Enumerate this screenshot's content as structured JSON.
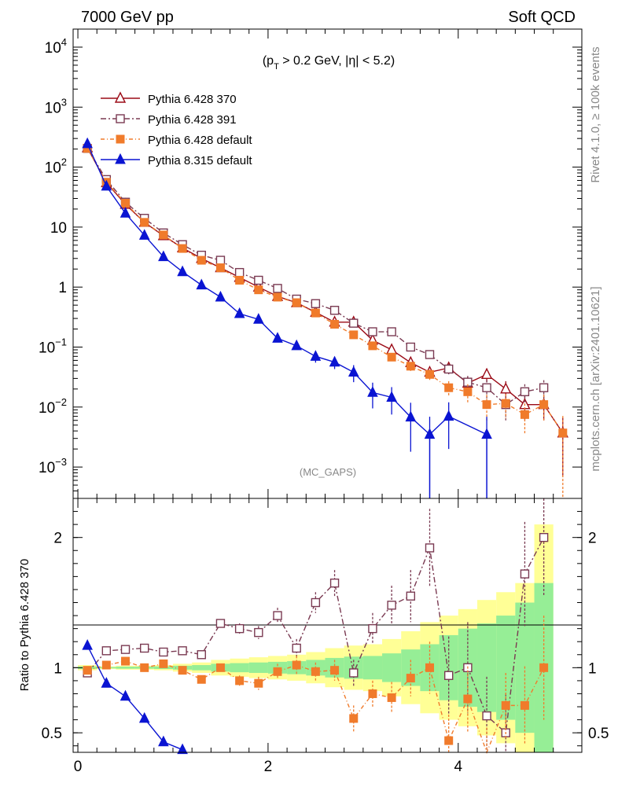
{
  "header": {
    "left_title": "7000 GeV pp",
    "right_title": "Soft QCD"
  },
  "side": {
    "rivet": "Rivet 4.1.0, ≥ 100k events",
    "mcplots": "mcplots.cern.ch [arXiv:2401.10621]"
  },
  "colors": {
    "p370": "#9b0a16",
    "p391": "#7a3a52",
    "p6def": "#f07b2b",
    "p8def": "#0a14d2",
    "band_yellow": "#ffff96",
    "band_green": "#96ee96"
  },
  "chart_data": [
    {
      "type": "line",
      "panel": "main",
      "title_cut": {
        "pre": "(p",
        "sub": "T",
        "post": " > 0.2 GeV, |η| < 5.2)"
      },
      "watermark": "(MC_GAPS)",
      "yscale": "log",
      "xlim": [
        -0.05,
        5.3
      ],
      "ylim": [
        0.0003,
        20000
      ],
      "yticks": [
        {
          "v": 0.001,
          "b": "10",
          "e": "−3"
        },
        {
          "v": 0.01,
          "b": "10",
          "e": "−2"
        },
        {
          "v": 0.1,
          "b": "10",
          "e": "−1"
        },
        {
          "v": 1,
          "b": "1",
          "e": ""
        },
        {
          "v": 10,
          "b": "10",
          "e": ""
        },
        {
          "v": 100,
          "b": "10",
          "e": "2"
        },
        {
          "v": 1000,
          "b": "10",
          "e": "3"
        },
        {
          "v": 10000,
          "b": "10",
          "e": "4"
        }
      ],
      "legend_position": "top-left",
      "series": [
        {
          "key": "p370",
          "name": "Pythia 6.428 370",
          "marker": "triangle-open",
          "dash": "",
          "x": [
            0.1,
            0.3,
            0.5,
            0.7,
            0.9,
            1.1,
            1.3,
            1.5,
            1.7,
            1.9,
            2.1,
            2.3,
            2.5,
            2.7,
            2.9,
            3.1,
            3.3,
            3.5,
            3.7,
            3.9,
            4.1,
            4.3,
            4.5,
            4.7,
            4.9,
            5.1
          ],
          "y": [
            210,
            55,
            24,
            12,
            7.2,
            4.5,
            3.0,
            2.1,
            1.45,
            1.0,
            0.7,
            0.55,
            0.38,
            0.26,
            0.26,
            0.13,
            0.09,
            0.055,
            0.038,
            0.045,
            0.025,
            0.035,
            0.02,
            0.011,
            0.011,
            0.0037
          ],
          "err": [
            5,
            1.5,
            0.6,
            0.3,
            0.2,
            0.1,
            0.08,
            0.06,
            0.04,
            0.03,
            0.03,
            0.03,
            0.02,
            0.02,
            0.02,
            0.015,
            0.012,
            0.009,
            0.008,
            0.009,
            0.007,
            0.009,
            0.007,
            0.005,
            0.005,
            0.003
          ]
        },
        {
          "key": "p391",
          "name": "Pythia 6.428 391",
          "marker": "square-open",
          "dash": "7,3,2,3",
          "x": [
            0.1,
            0.3,
            0.5,
            0.7,
            0.9,
            1.1,
            1.3,
            1.5,
            1.7,
            1.9,
            2.1,
            2.3,
            2.5,
            2.7,
            2.9,
            3.1,
            3.3,
            3.5,
            3.7,
            3.9,
            4.1,
            4.3,
            4.5,
            4.7,
            4.9
          ],
          "y": [
            205,
            62,
            26,
            14,
            8.0,
            5.1,
            3.4,
            2.8,
            1.75,
            1.3,
            0.95,
            0.63,
            0.53,
            0.41,
            0.25,
            0.18,
            0.18,
            0.1,
            0.075,
            0.043,
            0.026,
            0.021,
            0.011,
            0.018,
            0.021
          ],
          "err": [
            5,
            1.5,
            0.6,
            0.3,
            0.2,
            0.1,
            0.08,
            0.07,
            0.05,
            0.04,
            0.04,
            0.03,
            0.03,
            0.03,
            0.02,
            0.02,
            0.02,
            0.012,
            0.01,
            0.009,
            0.007,
            0.007,
            0.005,
            0.006,
            0.007
          ]
        },
        {
          "key": "p6def",
          "name": "Pythia 6.428 default",
          "marker": "square-filled",
          "dash": "5,3,1,3",
          "x": [
            0.1,
            0.3,
            0.5,
            0.7,
            0.9,
            1.1,
            1.3,
            1.5,
            1.7,
            1.9,
            2.1,
            2.3,
            2.5,
            2.7,
            2.9,
            3.1,
            3.3,
            3.5,
            3.7,
            3.9,
            4.1,
            4.3,
            4.5,
            4.7,
            4.9,
            5.1
          ],
          "y": [
            205,
            56,
            25,
            12,
            7.4,
            4.4,
            2.8,
            2.1,
            1.3,
            0.9,
            0.68,
            0.55,
            0.37,
            0.24,
            0.16,
            0.105,
            0.068,
            0.048,
            0.035,
            0.021,
            0.018,
            0.011,
            0.0115,
            0.0075,
            0.011,
            0.0037
          ],
          "err": [
            5,
            1.5,
            0.6,
            0.3,
            0.2,
            0.1,
            0.08,
            0.06,
            0.04,
            0.03,
            0.03,
            0.03,
            0.02,
            0.02,
            0.015,
            0.012,
            0.01,
            0.008,
            0.007,
            0.006,
            0.006,
            0.005,
            0.005,
            0.004,
            0.005,
            0.0034
          ]
        },
        {
          "key": "p8def",
          "name": "Pythia 8.315 default",
          "marker": "triangle-filled",
          "dash": "",
          "x": [
            0.1,
            0.3,
            0.5,
            0.7,
            0.9,
            1.1,
            1.3,
            1.5,
            1.7,
            1.9,
            2.1,
            2.3,
            2.5,
            2.7,
            2.9,
            3.1,
            3.3,
            3.5,
            3.7,
            3.9,
            4.3
          ],
          "y": [
            245,
            48,
            17,
            7.3,
            3.2,
            1.8,
            1.08,
            0.68,
            0.36,
            0.29,
            0.14,
            0.105,
            0.07,
            0.056,
            0.038,
            0.0175,
            0.0145,
            0.0068,
            0.0035,
            0.007,
            0.0035
          ],
          "err": [
            6,
            1.5,
            0.5,
            0.2,
            0.1,
            0.06,
            0.05,
            0.04,
            0.03,
            0.02,
            0.02,
            0.015,
            0.015,
            0.013,
            0.012,
            0.008,
            0.007,
            0.005,
            0.0034,
            0.005,
            0.0034
          ]
        }
      ]
    },
    {
      "type": "line",
      "panel": "ratio",
      "ylabel": "Ratio to Pythia 6.428 370",
      "xlim": [
        -0.05,
        5.3
      ],
      "ylim": [
        0.35,
        2.3
      ],
      "yticks": [
        {
          "v": 0.5,
          "label": "0.5"
        },
        {
          "v": 1,
          "label": "1"
        },
        {
          "v": 2,
          "label": "2"
        }
      ],
      "xticks": [
        {
          "v": 0,
          "label": "0"
        },
        {
          "v": 2,
          "label": "2"
        },
        {
          "v": 4,
          "label": "4"
        }
      ],
      "band": {
        "edges": [
          0.0,
          0.2,
          0.4,
          0.6,
          0.8,
          1.0,
          1.2,
          1.4,
          1.6,
          1.8,
          2.0,
          2.2,
          2.4,
          2.6,
          2.8,
          3.0,
          3.2,
          3.4,
          3.6,
          3.8,
          4.0,
          4.2,
          4.4,
          4.6,
          4.8,
          5.0
        ],
        "yellow": [
          0.02,
          0.01,
          0.015,
          0.015,
          0.02,
          0.03,
          0.04,
          0.06,
          0.07,
          0.08,
          0.09,
          0.1,
          0.12,
          0.15,
          0.17,
          0.18,
          0.22,
          0.28,
          0.35,
          0.4,
          0.45,
          0.52,
          0.58,
          0.65,
          1.1
        ],
        "green": [
          0.01,
          0.005,
          0.008,
          0.008,
          0.01,
          0.015,
          0.02,
          0.03,
          0.035,
          0.04,
          0.045,
          0.05,
          0.06,
          0.075,
          0.085,
          0.09,
          0.11,
          0.14,
          0.18,
          0.25,
          0.3,
          0.34,
          0.4,
          0.5,
          0.65
        ]
      },
      "series": [
        {
          "key": "p391",
          "marker": "square-open",
          "dash": "7,3,2,3",
          "x": [
            0.1,
            0.3,
            0.5,
            0.7,
            0.9,
            1.1,
            1.3,
            1.5,
            1.7,
            1.9,
            2.1,
            2.3,
            2.5,
            2.7,
            2.9,
            3.1,
            3.3,
            3.5,
            3.7,
            3.9,
            4.1,
            4.3,
            4.5,
            4.7,
            4.9
          ],
          "y": [
            0.96,
            1.13,
            1.14,
            1.15,
            1.12,
            1.13,
            1.1,
            1.34,
            1.3,
            1.27,
            1.4,
            1.15,
            1.5,
            1.65,
            0.96,
            1.3,
            1.48,
            1.55,
            1.92,
            0.94,
            1.0,
            0.63,
            0.5,
            1.72,
            2.0
          ],
          "err": [
            0.02,
            0.02,
            0.02,
            0.02,
            0.02,
            0.02,
            0.02,
            0.03,
            0.04,
            0.05,
            0.06,
            0.07,
            0.08,
            0.1,
            0.1,
            0.12,
            0.15,
            0.2,
            0.3,
            0.3,
            0.35,
            0.3,
            0.3,
            0.4,
            0.45
          ]
        },
        {
          "key": "p6def",
          "marker": "square-filled",
          "dash": "5,3,1,3",
          "x": [
            0.1,
            0.3,
            0.5,
            0.7,
            0.9,
            1.1,
            1.3,
            1.5,
            1.7,
            1.9,
            2.1,
            2.3,
            2.5,
            2.7,
            2.9,
            3.1,
            3.3,
            3.5,
            3.7,
            3.9,
            4.1,
            4.3,
            4.5,
            4.7,
            4.9
          ],
          "y": [
            0.98,
            1.02,
            1.05,
            1.0,
            1.03,
            0.98,
            0.91,
            1.0,
            0.9,
            0.88,
            0.97,
            1.02,
            0.97,
            0.98,
            0.61,
            0.8,
            0.77,
            0.92,
            1.0,
            0.44,
            0.76,
            0.34,
            0.71,
            0.71,
            1.0
          ],
          "err": [
            0.02,
            0.02,
            0.02,
            0.02,
            0.02,
            0.02,
            0.03,
            0.03,
            0.04,
            0.05,
            0.06,
            0.07,
            0.07,
            0.08,
            0.1,
            0.1,
            0.12,
            0.14,
            0.2,
            0.2,
            0.25,
            0.2,
            0.25,
            0.3,
            0.4
          ]
        },
        {
          "key": "p8def",
          "marker": "triangle-filled",
          "dash": "",
          "x": [
            0.1,
            0.3,
            0.5,
            0.7,
            0.9,
            1.1
          ],
          "y": [
            1.17,
            0.88,
            0.78,
            0.61,
            0.43,
            0.37
          ],
          "err": [
            0.01,
            0.01,
            0.01,
            0.01,
            0.01,
            0.01
          ]
        }
      ]
    }
  ]
}
